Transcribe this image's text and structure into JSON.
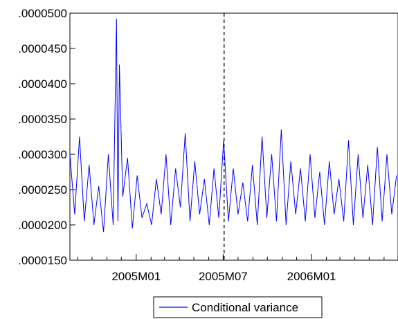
{
  "chart_data": {
    "type": "line",
    "title": "",
    "xlabel": "",
    "ylabel": "",
    "ylim": [
      1.5e-05,
      5e-05
    ],
    "xlim": [
      "2004-08-16",
      "2006-06-30"
    ],
    "y_ticks": [
      {
        "value": 1.5e-05,
        "label": ".0000150"
      },
      {
        "value": 2e-05,
        "label": ".0000200"
      },
      {
        "value": 2.5e-05,
        "label": ".0000250"
      },
      {
        "value": 3e-05,
        "label": ".0000300"
      },
      {
        "value": 3.5e-05,
        "label": ".0000350"
      },
      {
        "value": 4e-05,
        "label": ".0000400"
      },
      {
        "value": 4.5e-05,
        "label": ".0000450"
      },
      {
        "value": 5e-05,
        "label": ".0000500"
      }
    ],
    "x_tick_labels": [
      {
        "date": "2005-01-01",
        "label": "2005M01"
      },
      {
        "date": "2005-07-01",
        "label": "2005M07"
      },
      {
        "date": "2006-01-01",
        "label": "2006M01"
      }
    ],
    "x_minor_ticks": [
      "2004-09-01",
      "2004-10-01",
      "2004-11-01",
      "2004-12-01",
      "2005-02-01",
      "2005-03-01",
      "2005-04-01",
      "2005-05-01",
      "2005-06-01",
      "2005-08-01",
      "2005-09-01",
      "2005-10-01",
      "2005-11-01",
      "2005-12-01",
      "2006-02-01",
      "2006-03-01",
      "2006-04-01",
      "2006-05-01",
      "2006-06-01"
    ],
    "vline": {
      "date": "2005-07-03",
      "style": "dashed"
    },
    "grid": false,
    "legend": {
      "position": "bottom-center",
      "entries": [
        "Conditional variance"
      ]
    },
    "series": [
      {
        "name": "Conditional variance",
        "color": "#0000ff",
        "x": [
          "2004-08-16",
          "2004-08-26",
          "2004-09-05",
          "2004-09-15",
          "2004-09-25",
          "2004-10-05",
          "2004-10-15",
          "2004-10-25",
          "2004-11-04",
          "2004-11-14",
          "2004-11-21",
          "2004-11-24",
          "2004-11-27",
          "2004-12-04",
          "2004-12-14",
          "2004-12-24",
          "2005-01-03",
          "2005-01-13",
          "2005-01-23",
          "2005-02-02",
          "2005-02-12",
          "2005-02-22",
          "2005-03-04",
          "2005-03-14",
          "2005-03-24",
          "2005-04-03",
          "2005-04-13",
          "2005-04-23",
          "2005-05-03",
          "2005-05-13",
          "2005-05-23",
          "2005-06-02",
          "2005-06-12",
          "2005-06-22",
          "2005-07-02",
          "2005-07-12",
          "2005-07-22",
          "2005-08-01",
          "2005-08-11",
          "2005-08-21",
          "2005-08-31",
          "2005-09-10",
          "2005-09-20",
          "2005-09-30",
          "2005-10-10",
          "2005-10-20",
          "2005-10-30",
          "2005-11-09",
          "2005-11-19",
          "2005-11-29",
          "2005-12-09",
          "2005-12-19",
          "2005-12-29",
          "2006-01-08",
          "2006-01-18",
          "2006-01-28",
          "2006-02-07",
          "2006-02-17",
          "2006-02-27",
          "2006-03-09",
          "2006-03-19",
          "2006-03-29",
          "2006-04-08",
          "2006-04-18",
          "2006-04-28",
          "2006-05-08",
          "2006-05-18",
          "2006-05-28",
          "2006-06-07",
          "2006-06-17",
          "2006-06-27"
        ],
        "values": [
          3e-05,
          2.15e-05,
          3.25e-05,
          2.05e-05,
          2.85e-05,
          2e-05,
          2.55e-05,
          1.9e-05,
          3e-05,
          2e-05,
          4.92e-05,
          2.05e-05,
          4.27e-05,
          2.4e-05,
          2.95e-05,
          1.95e-05,
          2.7e-05,
          2.1e-05,
          2.3e-05,
          2e-05,
          2.65e-05,
          2.15e-05,
          3e-05,
          2e-05,
          2.8e-05,
          2.25e-05,
          3.3e-05,
          2.05e-05,
          2.9e-05,
          2.15e-05,
          2.65e-05,
          2e-05,
          2.8e-05,
          2.1e-05,
          3.2e-05,
          2.05e-05,
          2.8e-05,
          2.15e-05,
          2.6e-05,
          2.05e-05,
          2.85e-05,
          2e-05,
          3.25e-05,
          2.1e-05,
          3e-05,
          2.05e-05,
          3.35e-05,
          2e-05,
          2.9e-05,
          2.15e-05,
          2.8e-05,
          2.05e-05,
          3e-05,
          2.1e-05,
          2.75e-05,
          2e-05,
          2.9e-05,
          2.15e-05,
          2.65e-05,
          2.05e-05,
          3.2e-05,
          2e-05,
          3e-05,
          2.1e-05,
          2.85e-05,
          2e-05,
          3.1e-05,
          2.05e-05,
          3e-05,
          2.15e-05,
          2.7e-05
        ]
      }
    ]
  }
}
